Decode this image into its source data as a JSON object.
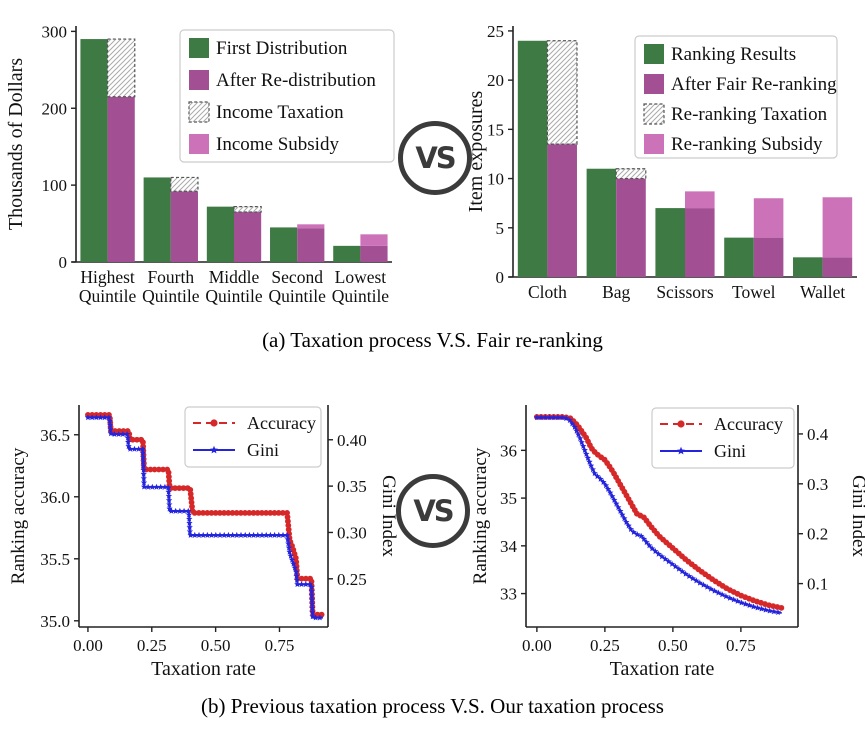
{
  "figure": {
    "caption_a": "(a)  Taxation process V.S. Fair re-ranking",
    "caption_b": "(b)  Previous taxation process V.S. Our taxation process",
    "vs_label": "VS"
  },
  "colors": {
    "green": "#3E7A44",
    "purple": "#A34F94",
    "pink": "#CB72B8",
    "hatch_line": "#AAAAAA",
    "hatch_border": "#555555",
    "red": "#D62828",
    "blue": "#2424DC",
    "axis": "#222222",
    "legend_border": "#CCCCCC"
  },
  "chart_data": [
    {
      "id": "taxation-bars",
      "type": "bar",
      "ylabel": "Thousands of Dollars",
      "ylim": [
        0,
        307
      ],
      "yticks": [
        0,
        100,
        200,
        300
      ],
      "ytick_labels": [
        "0",
        "100",
        "200",
        "300"
      ],
      "categories": [
        "Highest Quintile",
        "Fourth Quintile",
        "Middle Quintile",
        "Second Quintile",
        "Lowest Quintile"
      ],
      "series": [
        {
          "name": "First Distribution",
          "role": "base-left",
          "color": "green",
          "values": [
            290,
            110,
            72,
            45,
            21
          ]
        },
        {
          "name": "After Re-distribution",
          "role": "base-right",
          "color": "purple",
          "values": [
            215,
            92,
            65,
            44,
            21
          ]
        },
        {
          "name": "Income Taxation",
          "role": "stack-hatch",
          "color": "hatch",
          "values": [
            75,
            18,
            7,
            0,
            0
          ]
        },
        {
          "name": "Income Subsidy",
          "role": "stack",
          "color": "pink",
          "values": [
            0,
            0,
            0,
            5,
            15
          ]
        }
      ]
    },
    {
      "id": "reranking-bars",
      "type": "bar",
      "ylabel": "Item exposures",
      "ylim": [
        0,
        25.5
      ],
      "yticks": [
        0,
        5,
        10,
        15,
        20,
        25
      ],
      "ytick_labels": [
        "0",
        "5",
        "10",
        "15",
        "20",
        "25"
      ],
      "categories": [
        "Cloth",
        "Bag",
        "Scissors",
        "Towel",
        "Wallet"
      ],
      "series": [
        {
          "name": "Ranking Results",
          "role": "base-left",
          "color": "green",
          "values": [
            24,
            11,
            7,
            4,
            2
          ]
        },
        {
          "name": "After Fair Re-ranking",
          "role": "base-right",
          "color": "purple",
          "values": [
            13.5,
            10,
            7,
            4,
            2
          ]
        },
        {
          "name": "Re-ranking Taxation",
          "role": "stack-hatch",
          "color": "hatch",
          "values": [
            10.5,
            1,
            0,
            0,
            0
          ]
        },
        {
          "name": "Re-ranking Subsidy",
          "role": "stack",
          "color": "pink",
          "values": [
            0,
            0,
            1.7,
            4,
            6.1
          ]
        }
      ]
    },
    {
      "id": "previous-taxation-lines",
      "type": "line",
      "xlabel": "Taxation rate",
      "xlim": [
        -0.035,
        0.94
      ],
      "xticks": [
        0,
        0.25,
        0.5,
        0.75
      ],
      "xtick_labels": [
        "0.00",
        "0.25",
        "0.50",
        "0.75"
      ],
      "ylabel_left": "Ranking accuracy",
      "ylim_left": [
        34.95,
        36.74
      ],
      "yticks_left": [
        35.0,
        35.5,
        36.0,
        36.5
      ],
      "ytick_labels_left": [
        "35.0",
        "35.5",
        "36.0",
        "36.5"
      ],
      "ylabel_right": "Gini Index",
      "ylim_right": [
        0.198,
        0.4375
      ],
      "yticks_right": [
        0.25,
        0.3,
        0.35,
        0.4
      ],
      "ytick_labels_right": [
        "0.25",
        "0.30",
        "0.35",
        "0.40"
      ],
      "series": [
        {
          "name": "Accuracy",
          "axis": "left",
          "color": "red",
          "dash": true,
          "marker": "circle",
          "points": [
            [
              0.0,
              36.66
            ],
            [
              0.085,
              36.66
            ],
            [
              0.09,
              36.53
            ],
            [
              0.16,
              36.53
            ],
            [
              0.165,
              36.46
            ],
            [
              0.215,
              36.46
            ],
            [
              0.22,
              36.22
            ],
            [
              0.315,
              36.22
            ],
            [
              0.32,
              36.07
            ],
            [
              0.4,
              36.07
            ],
            [
              0.41,
              35.87
            ],
            [
              0.78,
              35.87
            ],
            [
              0.79,
              35.65
            ],
            [
              0.8,
              35.6
            ],
            [
              0.815,
              35.5
            ],
            [
              0.82,
              35.34
            ],
            [
              0.875,
              35.34
            ],
            [
              0.88,
              35.05
            ],
            [
              0.92,
              35.05
            ]
          ]
        },
        {
          "name": "Gini",
          "axis": "right",
          "color": "blue",
          "dash": false,
          "marker": "star",
          "points": [
            [
              0.0,
              0.424
            ],
            [
              0.085,
              0.424
            ],
            [
              0.09,
              0.406
            ],
            [
              0.155,
              0.406
            ],
            [
              0.16,
              0.39
            ],
            [
              0.215,
              0.39
            ],
            [
              0.22,
              0.349
            ],
            [
              0.315,
              0.349
            ],
            [
              0.32,
              0.323
            ],
            [
              0.395,
              0.323
            ],
            [
              0.4,
              0.297
            ],
            [
              0.78,
              0.297
            ],
            [
              0.79,
              0.278
            ],
            [
              0.8,
              0.27
            ],
            [
              0.815,
              0.258
            ],
            [
              0.82,
              0.244
            ],
            [
              0.875,
              0.244
            ],
            [
              0.88,
              0.208
            ],
            [
              0.92,
              0.208
            ]
          ]
        }
      ]
    },
    {
      "id": "our-taxation-lines",
      "type": "line",
      "xlabel": "Taxation rate",
      "xlim": [
        -0.04,
        0.96
      ],
      "xticks": [
        0,
        0.25,
        0.5,
        0.75
      ],
      "xtick_labels": [
        "0.00",
        "0.25",
        "0.50",
        "0.75"
      ],
      "ylabel_left": "Ranking accuracy",
      "ylim_left": [
        32.3,
        36.95
      ],
      "yticks_left": [
        33,
        34,
        35,
        36
      ],
      "ytick_labels_left": [
        "33",
        "34",
        "35",
        "36"
      ],
      "ylabel_right": "Gini Index",
      "ylim_right": [
        0.013,
        0.458
      ],
      "yticks_right": [
        0.1,
        0.2,
        0.3,
        0.4
      ],
      "ytick_labels_right": [
        "0.1",
        "0.2",
        "0.3",
        "0.4"
      ],
      "series": [
        {
          "name": "Accuracy",
          "axis": "left",
          "color": "red",
          "dash": true,
          "marker": "circle",
          "points": [
            [
              0.0,
              36.7
            ],
            [
              0.1,
              36.7
            ],
            [
              0.125,
              36.67
            ],
            [
              0.15,
              36.52
            ],
            [
              0.165,
              36.4
            ],
            [
              0.18,
              36.28
            ],
            [
              0.2,
              36.05
            ],
            [
              0.215,
              35.95
            ],
            [
              0.23,
              35.88
            ],
            [
              0.25,
              35.8
            ],
            [
              0.265,
              35.68
            ],
            [
              0.28,
              35.55
            ],
            [
              0.3,
              35.35
            ],
            [
              0.32,
              35.15
            ],
            [
              0.34,
              34.95
            ],
            [
              0.355,
              34.8
            ],
            [
              0.37,
              34.65
            ],
            [
              0.39,
              34.62
            ],
            [
              0.4,
              34.55
            ],
            [
              0.42,
              34.4
            ],
            [
              0.45,
              34.2
            ],
            [
              0.48,
              34.05
            ],
            [
              0.5,
              33.95
            ],
            [
              0.55,
              33.7
            ],
            [
              0.6,
              33.48
            ],
            [
              0.65,
              33.28
            ],
            [
              0.7,
              33.1
            ],
            [
              0.75,
              32.96
            ],
            [
              0.8,
              32.85
            ],
            [
              0.85,
              32.76
            ],
            [
              0.9,
              32.7
            ]
          ]
        },
        {
          "name": "Gini",
          "axis": "right",
          "color": "blue",
          "dash": false,
          "marker": "star",
          "points": [
            [
              0.0,
              0.433
            ],
            [
              0.1,
              0.433
            ],
            [
              0.12,
              0.428
            ],
            [
              0.14,
              0.413
            ],
            [
              0.16,
              0.39
            ],
            [
              0.18,
              0.362
            ],
            [
              0.2,
              0.335
            ],
            [
              0.215,
              0.318
            ],
            [
              0.23,
              0.312
            ],
            [
              0.25,
              0.3
            ],
            [
              0.27,
              0.282
            ],
            [
              0.29,
              0.262
            ],
            [
              0.31,
              0.242
            ],
            [
              0.33,
              0.222
            ],
            [
              0.35,
              0.205
            ],
            [
              0.37,
              0.198
            ],
            [
              0.385,
              0.195
            ],
            [
              0.4,
              0.185
            ],
            [
              0.42,
              0.172
            ],
            [
              0.45,
              0.158
            ],
            [
              0.48,
              0.146
            ],
            [
              0.5,
              0.138
            ],
            [
              0.55,
              0.118
            ],
            [
              0.6,
              0.101
            ],
            [
              0.65,
              0.086
            ],
            [
              0.7,
              0.073
            ],
            [
              0.75,
              0.062
            ],
            [
              0.8,
              0.053
            ],
            [
              0.85,
              0.046
            ],
            [
              0.9,
              0.041
            ]
          ]
        }
      ]
    }
  ]
}
